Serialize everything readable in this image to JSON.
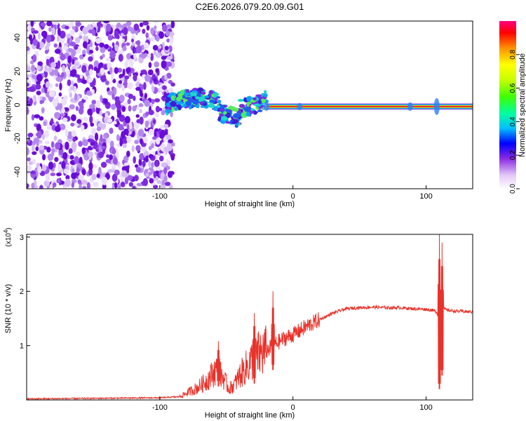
{
  "title": "C2E6.2026.079.20.09.G01",
  "chart_data": [
    {
      "type": "heatmap",
      "name": "spectrogram",
      "xlabel": "Height of straight line (km)",
      "ylabel": "Frequency (Hz)",
      "xlim": [
        -200,
        135
      ],
      "ylim": [
        -50,
        50
      ],
      "x_ticks": [
        -100,
        0,
        100
      ],
      "y_ticks": [
        40,
        20,
        0,
        -20,
        -40
      ],
      "x_tick_labels": [
        "-100",
        "0",
        "100"
      ],
      "y_tick_labels": [
        "40",
        "20",
        "0",
        "-20",
        "-40"
      ],
      "noise_region_x": [
        -200,
        -90
      ],
      "signal_segments": [
        {
          "x": [
            -95,
            -20
          ],
          "freq_center": 0,
          "note": "scattered signal wobbling between -10 and +8 Hz"
        },
        {
          "x": [
            -20,
            135
          ],
          "freq_center": -1,
          "note": "strong steady line near -1 Hz"
        }
      ],
      "colorbar": {
        "label": "Normalized spectral amplitude",
        "range": [
          0,
          1
        ],
        "ticks": [
          0.0,
          0.2,
          0.4,
          0.6,
          0.8
        ],
        "tick_labels": [
          "0.0",
          "0.2",
          "0.4",
          "0.6",
          "0.8"
        ]
      }
    },
    {
      "type": "line",
      "name": "snr",
      "xlabel": "Height of straight line (km)",
      "ylabel": "SNR (10 * v/v)",
      "multiplier_label": "(x10",
      "multiplier_exp": "4",
      "xlim": [
        -200,
        135
      ],
      "ylim": [
        0,
        3.05
      ],
      "x_ticks": [
        -100,
        0,
        100
      ],
      "y_ticks": [
        1,
        2,
        3
      ],
      "x_tick_labels": [
        "-100",
        "0",
        "100"
      ],
      "y_tick_labels": [
        "1",
        "2",
        "3"
      ],
      "color": "#e8322a",
      "x": [
        -200,
        -150,
        -100,
        -85,
        -78,
        -72,
        -65,
        -58,
        -52,
        -48,
        -44,
        -40,
        -35,
        -30,
        -25,
        -20,
        -15,
        -10,
        -5,
        0,
        10,
        20,
        30,
        40,
        50,
        60,
        70,
        80,
        90,
        100,
        105,
        108,
        110,
        112,
        115,
        120,
        135
      ],
      "values": [
        0.02,
        0.03,
        0.04,
        0.06,
        0.15,
        0.22,
        0.35,
        0.55,
        0.4,
        0.2,
        0.28,
        0.45,
        0.6,
        0.75,
        0.85,
        0.9,
        1.0,
        1.08,
        1.15,
        1.2,
        1.35,
        1.48,
        1.6,
        1.68,
        1.7,
        1.71,
        1.7,
        1.7,
        1.68,
        1.67,
        1.65,
        1.62,
        1.45,
        1.7,
        1.66,
        1.64,
        1.62
      ],
      "spikes": [
        {
          "x": -56,
          "max": 1.08,
          "min": 0.2
        },
        {
          "x": -29,
          "max": 1.6,
          "min": 0.25
        },
        {
          "x": -15,
          "max": 2.0,
          "min": 0.5
        },
        {
          "x": 110,
          "max": 3.05,
          "min": 0.15
        },
        {
          "x": 112,
          "max": 2.9,
          "min": 0.4
        }
      ]
    }
  ]
}
